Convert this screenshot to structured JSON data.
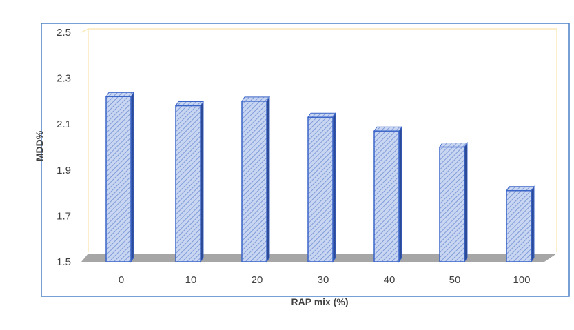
{
  "chart_data": {
    "type": "bar",
    "title": "",
    "xlabel": "RAP mix (%)",
    "ylabel": "MDD%",
    "categories": [
      "0",
      "10",
      "20",
      "30",
      "40",
      "50",
      "100"
    ],
    "values": [
      2.22,
      2.18,
      2.2,
      2.13,
      2.07,
      2.0,
      1.81
    ],
    "ylim": [
      1.5,
      2.5
    ],
    "yticks": [
      "2.5",
      "2.3",
      "2.1",
      "1.9",
      "1.7",
      "1.5"
    ],
    "grid": false,
    "legend": "none",
    "colors": {
      "bar_fill": "#c9d6f2",
      "bar_hatch": "#7f9bd8",
      "bar_edge": "#3a64c8",
      "bar_side": "#2c4a96",
      "floor": "#a6a6a6",
      "frame_back": "#fbe9b8",
      "plot_border": "#4a80c8"
    }
  }
}
